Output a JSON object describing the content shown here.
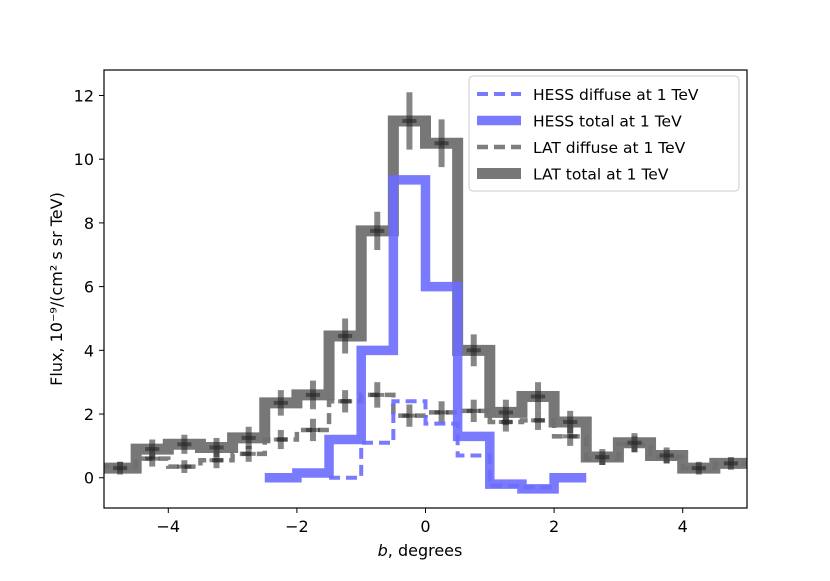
{
  "chart_data": {
    "type": "line",
    "title": "",
    "xlabel_var": "b",
    "xlabel_rest": ", degrees",
    "ylabel": "Flux, 10⁻⁹/(cm² s sr TeV)",
    "xlim": [
      -5,
      5
    ],
    "ylim": [
      -0.95,
      12.8
    ],
    "xticks": [
      -4,
      -2,
      0,
      2,
      4
    ],
    "xtick_labels": [
      "−4",
      "−2",
      "0",
      "2",
      "4"
    ],
    "yticks": [
      0,
      2,
      4,
      6,
      8,
      10,
      12
    ],
    "ytick_labels": [
      "0",
      "2",
      "4",
      "6",
      "8",
      "10",
      "12"
    ],
    "legend_position": "top-right",
    "step_edges": [
      -5.5,
      -5.0,
      -4.5,
      -4.0,
      -3.5,
      -3.0,
      -2.5,
      -2.0,
      -1.5,
      -1.0,
      -0.5,
      0.0,
      0.5,
      1.0,
      1.5,
      2.0,
      2.5,
      3.0,
      3.5,
      4.0,
      4.5,
      5.0,
      5.5
    ],
    "series": [
      {
        "name": "HESS diffuse at 1 TeV",
        "style": "dashed",
        "color": "#6b6bff",
        "x_centers": [
          -1.25,
          -0.75,
          -0.25,
          0.25,
          0.75,
          1.25,
          1.75
        ],
        "values": [
          0.0,
          1.1,
          2.4,
          1.7,
          0.7,
          -0.25,
          -0.3
        ],
        "pad_left": 0.0,
        "pad_right": 0.0
      },
      {
        "name": "HESS total at 1 TeV",
        "style": "solid",
        "color": "#6b6bff",
        "x_centers": [
          -2.25,
          -1.75,
          -1.25,
          -0.75,
          -0.25,
          0.25,
          0.75,
          1.25,
          1.75,
          2.25
        ],
        "values": [
          0.0,
          0.15,
          1.2,
          4.0,
          9.35,
          6.0,
          1.3,
          -0.2,
          -0.35,
          0.0
        ],
        "pad_left": 0.0,
        "pad_right": 0.0
      },
      {
        "name": "LAT diffuse at 1 TeV",
        "style": "dashed",
        "color": "#707070",
        "x_centers": [
          -4.75,
          -4.25,
          -3.75,
          -3.25,
          -2.75,
          -2.25,
          -1.75,
          -1.25,
          -0.75,
          -0.25,
          0.25,
          0.75,
          1.25,
          1.75,
          2.25,
          2.75,
          3.25,
          3.75,
          4.25,
          4.75
        ],
        "values": [
          0.35,
          0.6,
          0.35,
          0.55,
          0.75,
          1.2,
          1.5,
          2.4,
          2.6,
          1.95,
          2.05,
          2.1,
          1.75,
          1.8,
          1.3,
          0.6,
          1.05,
          0.65,
          0.3,
          0.45
        ],
        "yerr": [
          0.15,
          0.25,
          0.2,
          0.25,
          0.25,
          0.3,
          0.35,
          0.35,
          0.4,
          0.35,
          0.35,
          0.35,
          0.3,
          0.3,
          0.3,
          0.2,
          0.25,
          0.2,
          0.15,
          0.15
        ],
        "pad_left": 0.35,
        "pad_right": 0.6
      },
      {
        "name": "LAT total at 1 TeV",
        "style": "solid",
        "color": "#707070",
        "x_centers": [
          -4.75,
          -4.25,
          -3.75,
          -3.25,
          -2.75,
          -2.25,
          -1.75,
          -1.25,
          -0.75,
          -0.25,
          0.25,
          0.75,
          1.25,
          1.75,
          2.25,
          2.75,
          3.25,
          3.75,
          4.25,
          4.75
        ],
        "values": [
          0.3,
          0.9,
          1.05,
          0.95,
          1.25,
          2.35,
          2.6,
          4.45,
          7.75,
          11.2,
          10.5,
          4.0,
          2.05,
          2.55,
          1.75,
          0.65,
          1.1,
          0.7,
          0.3,
          0.45
        ],
        "yerr": [
          0.2,
          0.3,
          0.3,
          0.3,
          0.35,
          0.4,
          0.45,
          0.55,
          0.6,
          0.9,
          0.75,
          0.5,
          0.4,
          0.45,
          0.35,
          0.25,
          0.3,
          0.25,
          0.2,
          0.2
        ],
        "pad_left": 0.35,
        "pad_right": 0.75
      }
    ]
  }
}
